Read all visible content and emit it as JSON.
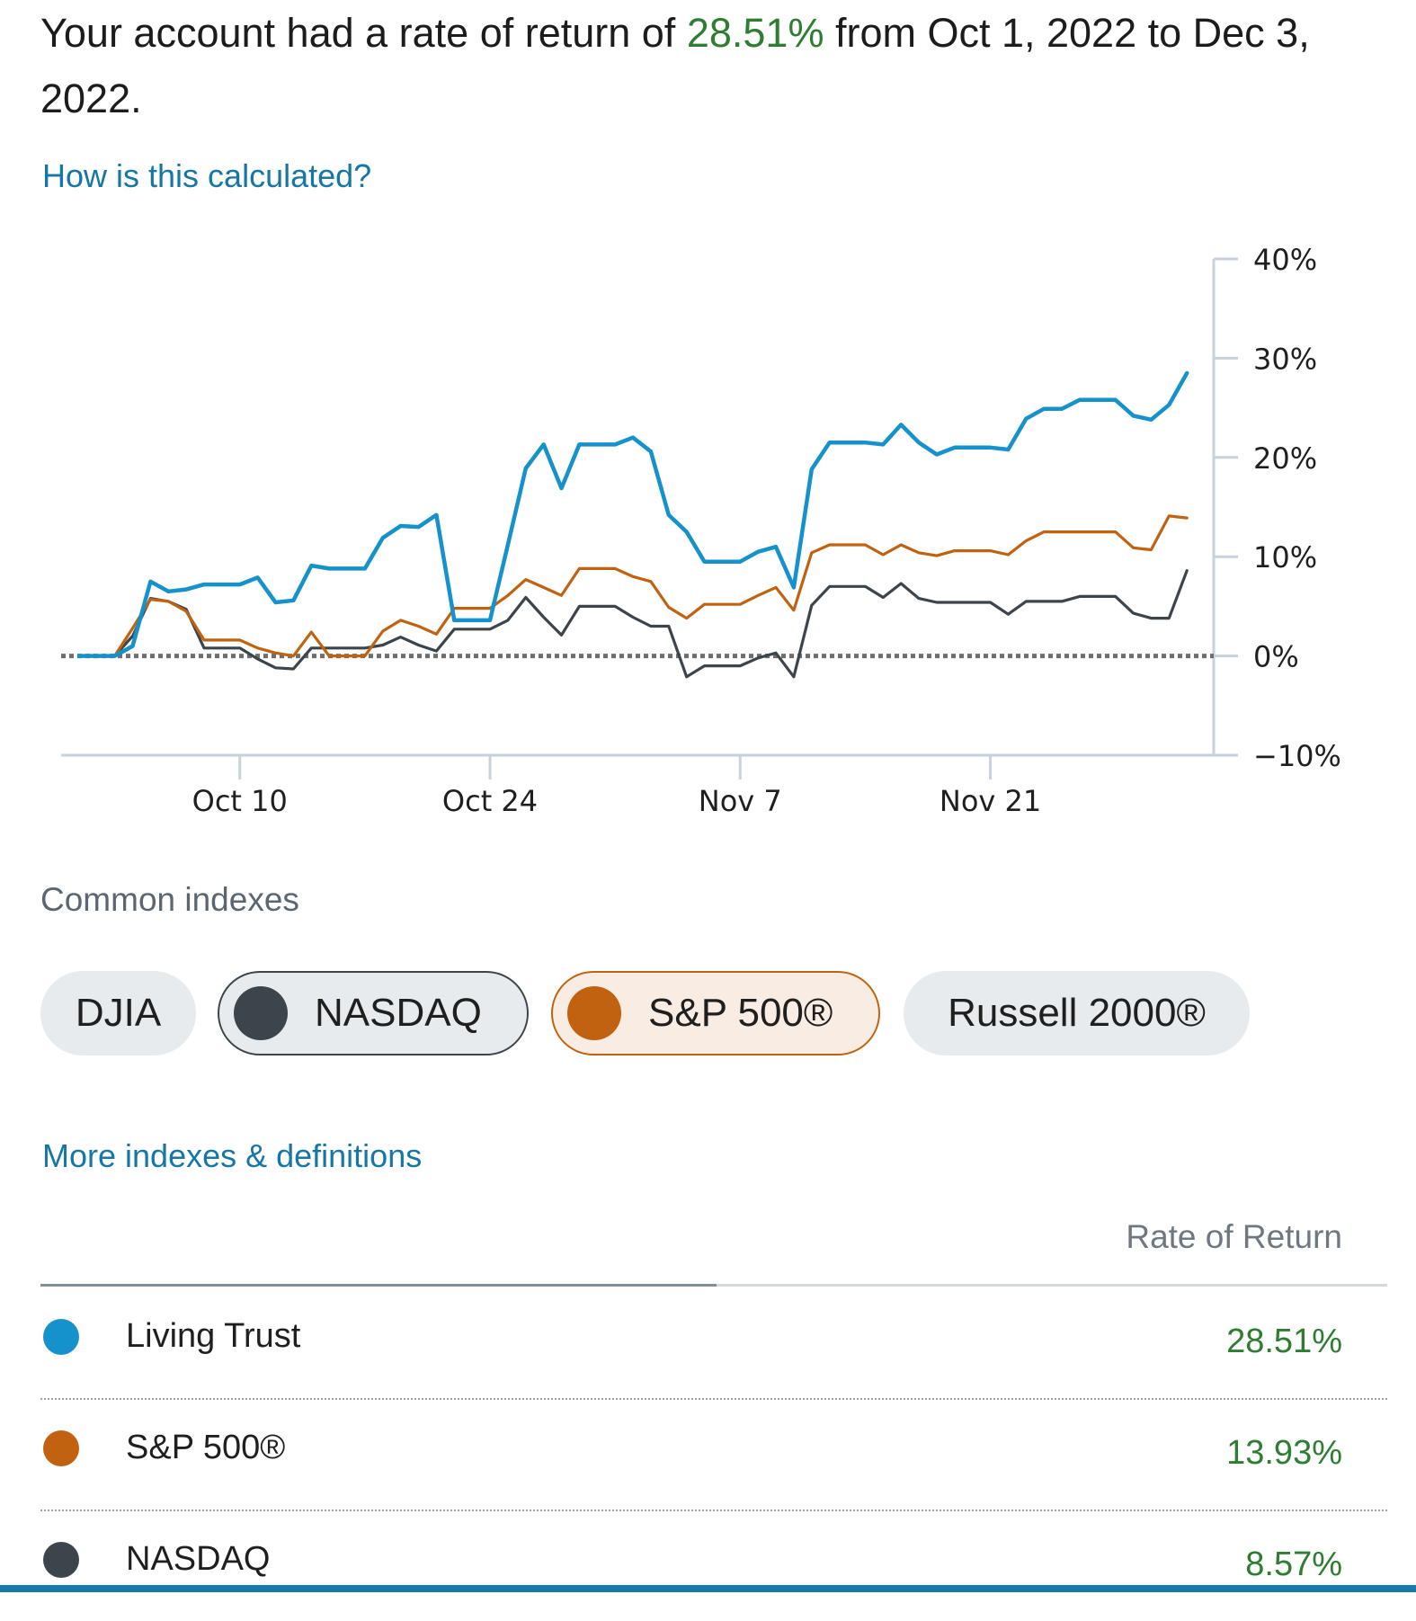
{
  "summary": {
    "prefix": "Your account had a rate of return of ",
    "percent": "28.51%",
    "suffix": " from Oct 1, 2022 to Dec 3, 2022."
  },
  "links": {
    "how_calculated": "How is this calculated?",
    "more_indexes": "More indexes & definitions"
  },
  "chart_data": {
    "type": "line",
    "title": "",
    "xlabel": "",
    "ylabel": "",
    "ylim": [
      -10,
      40
    ],
    "y_ticks": [
      -10,
      0,
      10,
      20,
      30,
      40
    ],
    "y_tick_labels": [
      "−10%",
      "0%",
      "10%",
      "20%",
      "30%",
      "40%"
    ],
    "x_ticks": [
      {
        "day": 9,
        "label": "Oct 10"
      },
      {
        "day": 23,
        "label": "Oct 24"
      },
      {
        "day": 37,
        "label": "Nov 7"
      },
      {
        "day": 51,
        "label": "Nov 21"
      }
    ],
    "x_range": [
      -1,
      63.5
    ],
    "x_unit": "days since Oct 1, 2022",
    "baseline": 0,
    "series": [
      {
        "name": "Living Trust",
        "color": "#1592cb",
        "x": [
          0,
          1,
          2,
          3,
          4,
          5,
          6,
          7,
          8,
          9,
          10,
          11,
          12,
          13,
          14,
          15,
          16,
          17,
          18,
          19,
          20,
          21,
          22,
          23,
          24,
          25,
          26,
          27,
          28,
          29,
          30,
          31,
          32,
          33,
          34,
          35,
          36,
          37,
          38,
          39,
          40,
          41,
          42,
          43,
          44,
          45,
          46,
          47,
          48,
          49,
          50,
          51,
          52,
          53,
          54,
          55,
          56,
          57,
          58,
          59,
          60,
          61,
          62
        ],
        "values": [
          0,
          0,
          0,
          1,
          7.5,
          6.5,
          6.7,
          7.2,
          7.2,
          7.2,
          7.9,
          5.4,
          5.6,
          9.1,
          8.8,
          8.8,
          8.8,
          11.9,
          13.1,
          13.0,
          14.2,
          3.6,
          3.6,
          3.6,
          11.2,
          18.9,
          21.3,
          16.9,
          21.3,
          21.3,
          21.3,
          22.0,
          20.6,
          14.2,
          12.5,
          9.5,
          9.5,
          9.5,
          10.5,
          11.0,
          6.9,
          18.8,
          21.5,
          21.5,
          21.5,
          21.3,
          23.3,
          21.5,
          20.3,
          21.0,
          21.0,
          21.0,
          20.8,
          23.9,
          24.9,
          24.9,
          25.8,
          25.8,
          25.8,
          24.2,
          23.8,
          25.3,
          28.5
        ]
      },
      {
        "name": "S&P 500®",
        "color": "#c0620f",
        "x": [
          0,
          1,
          2,
          3,
          4,
          5,
          6,
          7,
          8,
          9,
          10,
          11,
          12,
          13,
          14,
          15,
          16,
          17,
          18,
          19,
          20,
          21,
          22,
          23,
          24,
          25,
          26,
          27,
          28,
          29,
          30,
          31,
          32,
          33,
          34,
          35,
          36,
          37,
          38,
          39,
          40,
          41,
          42,
          43,
          44,
          45,
          46,
          47,
          48,
          49,
          50,
          51,
          52,
          53,
          54,
          55,
          56,
          57,
          58,
          59,
          60,
          61,
          62
        ],
        "values": [
          0,
          0,
          0,
          2.8,
          5.7,
          5.5,
          4.5,
          1.6,
          1.6,
          1.6,
          0.8,
          0.3,
          0,
          2.4,
          0,
          0,
          0,
          2.5,
          3.6,
          3.0,
          2.2,
          4.8,
          4.8,
          4.8,
          6.1,
          7.7,
          6.9,
          6.1,
          8.8,
          8.8,
          8.8,
          8.0,
          7.5,
          4.9,
          3.8,
          5.2,
          5.2,
          5.2,
          6.1,
          6.9,
          4.6,
          10.4,
          11.2,
          11.2,
          11.2,
          10.2,
          11.2,
          10.4,
          10.1,
          10.6,
          10.6,
          10.6,
          10.2,
          11.6,
          12.5,
          12.5,
          12.5,
          12.5,
          12.5,
          10.9,
          10.7,
          14.1,
          13.9
        ]
      },
      {
        "name": "NASDAQ",
        "color": "#3d454c",
        "x": [
          0,
          1,
          2,
          3,
          4,
          5,
          6,
          7,
          8,
          9,
          10,
          11,
          12,
          13,
          14,
          15,
          16,
          17,
          18,
          19,
          20,
          21,
          22,
          23,
          24,
          25,
          26,
          27,
          28,
          29,
          30,
          31,
          32,
          33,
          34,
          35,
          36,
          37,
          38,
          39,
          40,
          41,
          42,
          43,
          44,
          45,
          46,
          47,
          48,
          49,
          50,
          51,
          52,
          53,
          54,
          55,
          56,
          57,
          58,
          59,
          60,
          61,
          62
        ],
        "values": [
          0,
          0,
          0,
          2.0,
          5.8,
          5.5,
          4.7,
          0.8,
          0.8,
          0.8,
          -0.3,
          -1.2,
          -1.3,
          0.8,
          0.8,
          0.8,
          0.8,
          1.1,
          1.9,
          1.1,
          0.5,
          2.7,
          2.7,
          2.7,
          3.6,
          5.9,
          3.9,
          2.1,
          5.0,
          5.0,
          5.0,
          3.9,
          3.0,
          3.0,
          -2.1,
          -1.0,
          -1.0,
          -1.0,
          -0.2,
          0.3,
          -2.1,
          5.1,
          7.0,
          7.0,
          7.0,
          5.9,
          7.3,
          5.8,
          5.4,
          5.4,
          5.4,
          5.4,
          4.2,
          5.5,
          5.5,
          5.5,
          6.0,
          6.0,
          6.0,
          4.3,
          3.8,
          3.8,
          8.6
        ]
      }
    ]
  },
  "indexes": {
    "label": "Common indexes",
    "chips": [
      {
        "label": "DJIA",
        "selected": false
      },
      {
        "label": "NASDAQ",
        "selected": true,
        "color": "#3d454c"
      },
      {
        "label": "S&P 500®",
        "selected": true,
        "color": "#c0620f"
      },
      {
        "label": "Russell 2000®",
        "selected": false
      }
    ]
  },
  "table": {
    "header": "Rate of Return",
    "rows": [
      {
        "name": "Living Trust",
        "value": "28.51%",
        "color": "#1592cb"
      },
      {
        "name": "S&P 500®",
        "value": "13.93%",
        "color": "#c0620f"
      },
      {
        "name": "NASDAQ",
        "value": "8.57%",
        "color": "#3d454c"
      }
    ]
  }
}
